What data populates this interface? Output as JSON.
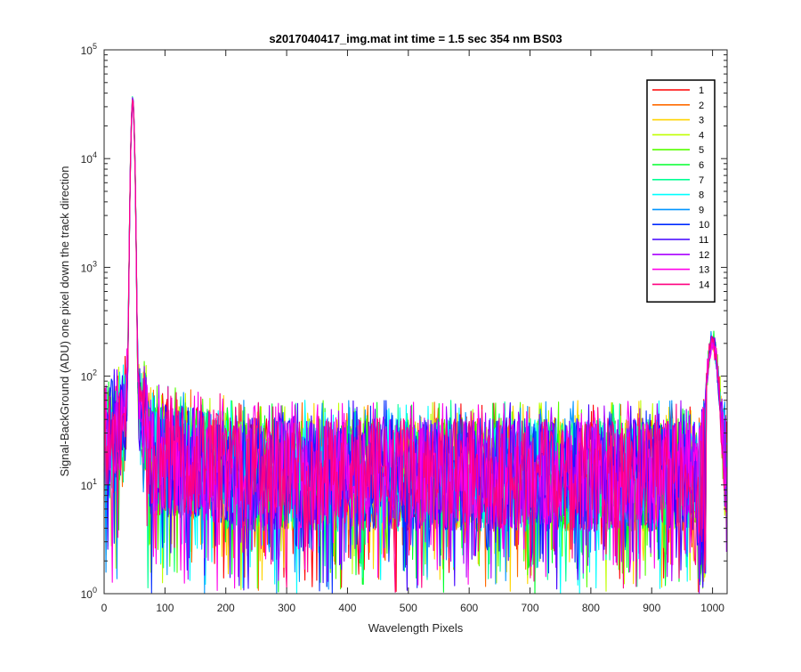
{
  "chart_data": {
    "type": "line",
    "title": "s2017040417_img.mat int time = 1.5 sec  354 nm BS03",
    "xlabel": "Wavelength Pixels",
    "ylabel": "Signal-BackGround (ADU) one pixel down the track direction",
    "xlim": [
      0,
      1024
    ],
    "ylim": [
      1,
      100000
    ],
    "yscale": "log",
    "grid": false,
    "legend_position": "top-right",
    "x_ticks": [
      "0",
      "100",
      "200",
      "300",
      "400",
      "500",
      "600",
      "700",
      "800",
      "900",
      "1000"
    ],
    "x_tick_values": [
      0,
      100,
      200,
      300,
      400,
      500,
      600,
      700,
      800,
      900,
      1000
    ],
    "y_tick_values": [
      1,
      10,
      100,
      1000,
      10000,
      100000
    ],
    "y_tick_exponents": [
      "0",
      "1",
      "2",
      "3",
      "4",
      "5"
    ],
    "y_tick_base": "10",
    "series": [
      {
        "name": "1",
        "color": "#ff0000"
      },
      {
        "name": "2",
        "color": "#ff6a00"
      },
      {
        "name": "3",
        "color": "#ffd400"
      },
      {
        "name": "4",
        "color": "#c0ff00"
      },
      {
        "name": "5",
        "color": "#55ff00"
      },
      {
        "name": "6",
        "color": "#00ff2b"
      },
      {
        "name": "7",
        "color": "#00ff95"
      },
      {
        "name": "8",
        "color": "#00ffff"
      },
      {
        "name": "9",
        "color": "#0095ff"
      },
      {
        "name": "10",
        "color": "#002bff"
      },
      {
        "name": "11",
        "color": "#4000ff"
      },
      {
        "name": "12",
        "color": "#aa00ff"
      },
      {
        "name": "13",
        "color": "#ff00ea"
      },
      {
        "name": "14",
        "color": "#ff0080"
      }
    ],
    "features": {
      "main_peak": {
        "x": 47,
        "y_max": 38000
      },
      "secondary_peak": {
        "x": 1000,
        "y_max": 220
      },
      "baseline_level_range": [
        2,
        60
      ]
    }
  }
}
